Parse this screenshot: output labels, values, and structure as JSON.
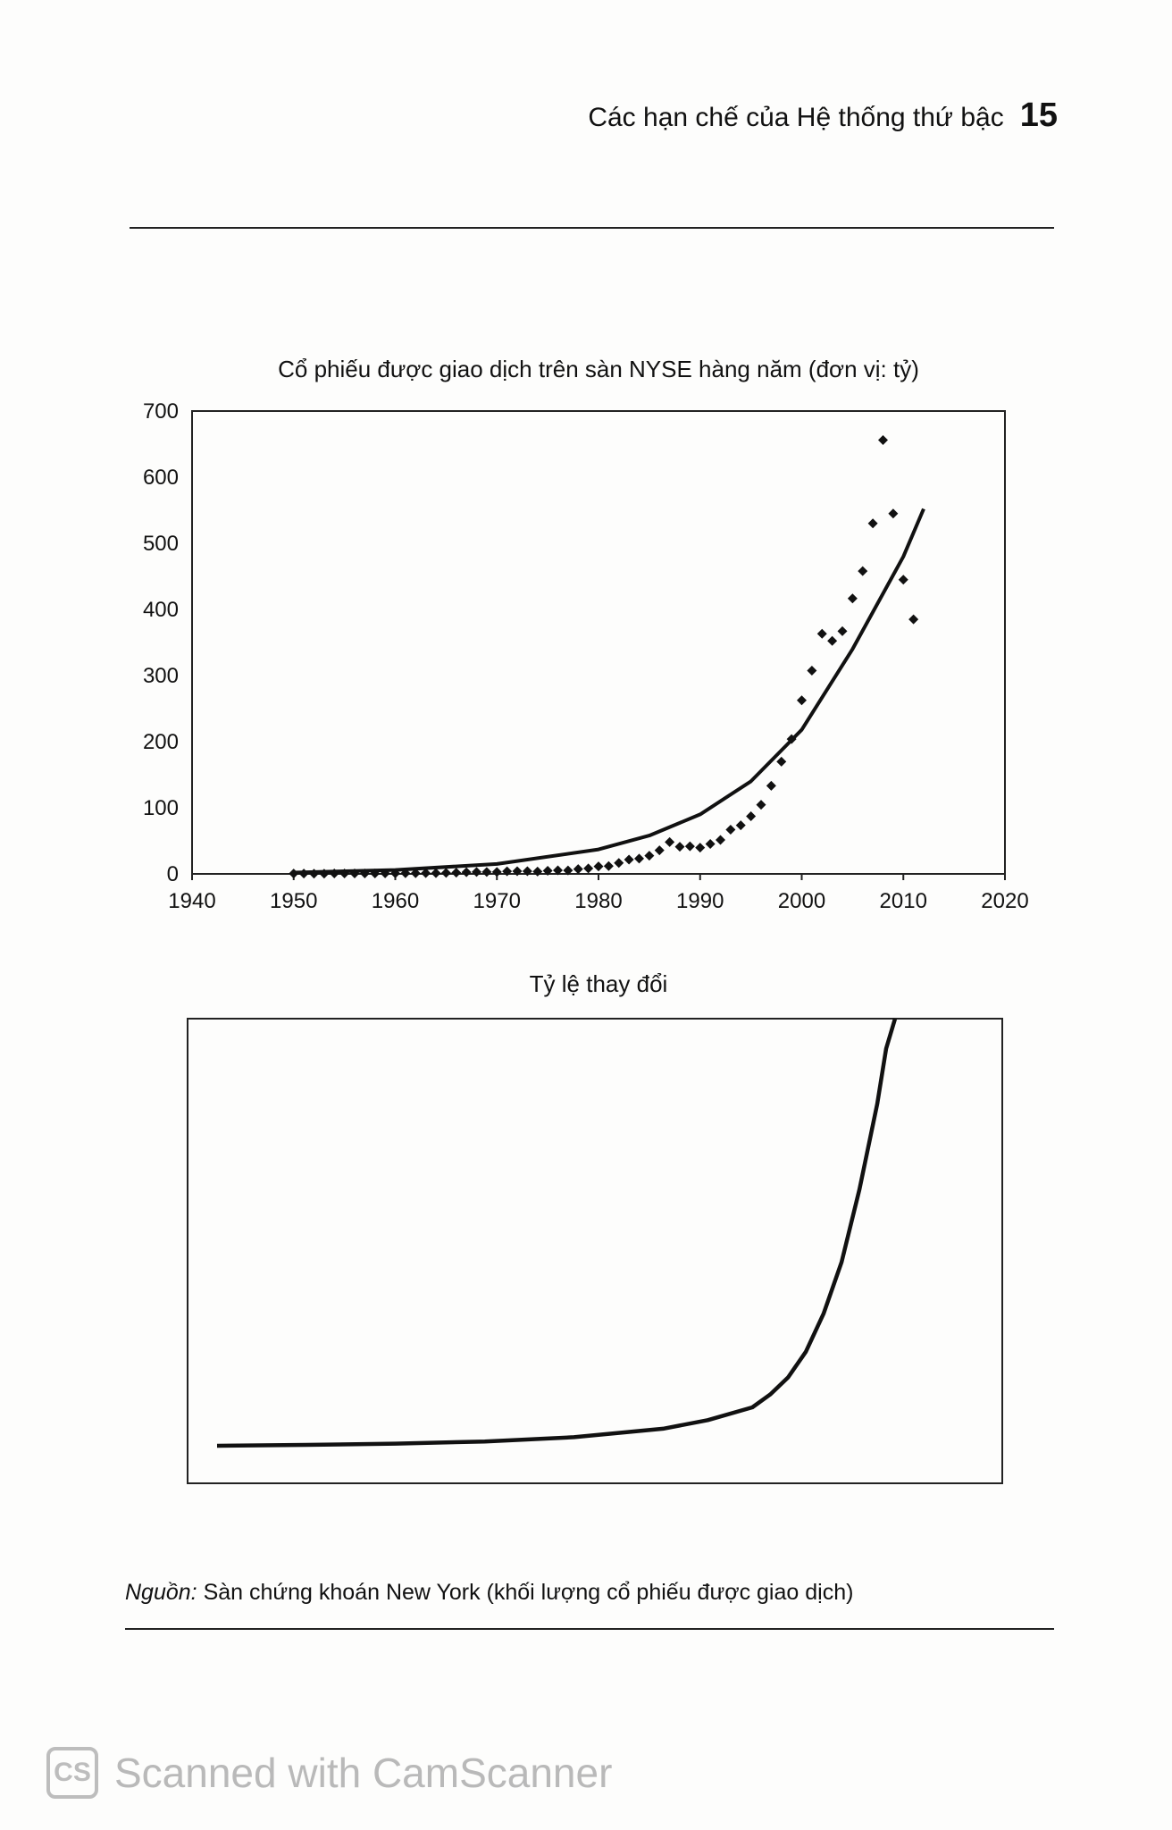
{
  "header": {
    "title": "Các hạn chế của Hệ thống thứ bậc",
    "page_number": "15"
  },
  "chart_data": [
    {
      "type": "scatter",
      "title": "Cổ phiếu được giao dịch trên sàn NYSE hàng năm (đơn vị: tỷ)",
      "xlabel": "",
      "ylabel": "",
      "xlim": [
        1940,
        2020
      ],
      "ylim": [
        0,
        700
      ],
      "x_ticks": [
        "1940",
        "1950",
        "1960",
        "1970",
        "1980",
        "1990",
        "2000",
        "2010",
        "2020"
      ],
      "y_ticks": [
        "0",
        "100",
        "200",
        "300",
        "400",
        "500",
        "600",
        "700"
      ],
      "grid": false,
      "series": [
        {
          "points": [
            [
              1950,
              0.5
            ],
            [
              1951,
              0.5
            ],
            [
              1952,
              0.3
            ],
            [
              1953,
              0.4
            ],
            [
              1954,
              0.6
            ],
            [
              1955,
              0.6
            ],
            [
              1956,
              0.6
            ],
            [
              1957,
              0.6
            ],
            [
              1958,
              0.7
            ],
            [
              1959,
              0.8
            ],
            [
              1960,
              0.8
            ],
            [
              1961,
              1.0
            ],
            [
              1962,
              1.0
            ],
            [
              1963,
              1.1
            ],
            [
              1964,
              1.2
            ],
            [
              1965,
              1.6
            ],
            [
              1966,
              1.9
            ],
            [
              1967,
              2.5
            ],
            [
              1968,
              2.9
            ],
            [
              1969,
              2.9
            ],
            [
              1970,
              2.9
            ],
            [
              1971,
              3.9
            ],
            [
              1972,
              4.1
            ],
            [
              1973,
              4.1
            ],
            [
              1974,
              3.5
            ],
            [
              1975,
              4.7
            ],
            [
              1976,
              5.4
            ],
            [
              1977,
              5.3
            ],
            [
              1978,
              7.2
            ],
            [
              1979,
              8.2
            ],
            [
              1980,
              11.4
            ],
            [
              1981,
              11.9
            ],
            [
              1982,
              16.5
            ],
            [
              1983,
              21.6
            ],
            [
              1984,
              23.1
            ],
            [
              1985,
              27.5
            ],
            [
              1986,
              35.7
            ],
            [
              1987,
              48.1
            ],
            [
              1988,
              41.1
            ],
            [
              1989,
              41.7
            ],
            [
              1990,
              39.7
            ],
            [
              1991,
              45.3
            ],
            [
              1992,
              51.4
            ],
            [
              1993,
              66.9
            ],
            [
              1994,
              73.4
            ],
            [
              1995,
              87.2
            ],
            [
              1996,
              104.6
            ],
            [
              1997,
              133.3
            ],
            [
              1998,
              169.7
            ],
            [
              1999,
              203.9
            ],
            [
              2000,
              262.5
            ],
            [
              2001,
              307.5
            ],
            [
              2002,
              363.1
            ],
            [
              2003,
              352.4
            ],
            [
              2004,
              367.1
            ],
            [
              2005,
              416.6
            ],
            [
              2006,
              457.9
            ],
            [
              2007,
              530.0
            ],
            [
              2008,
              656.0
            ],
            [
              2009,
              545.0
            ],
            [
              2010,
              445.0
            ],
            [
              2011,
              385.0
            ]
          ]
        },
        {
          "type": "line",
          "points": [
            [
              1950,
              2
            ],
            [
              1960,
              6
            ],
            [
              1970,
              15
            ],
            [
              1980,
              37
            ],
            [
              1985,
              58
            ],
            [
              1990,
              90
            ],
            [
              1995,
              140
            ],
            [
              2000,
              218
            ],
            [
              2005,
              340
            ],
            [
              2010,
              480
            ],
            [
              2012,
              552
            ]
          ]
        }
      ]
    },
    {
      "type": "line",
      "title": "Tỷ lệ thay đổi",
      "xlabel": "",
      "ylabel": "",
      "series": [
        {
          "points": [
            [
              0,
              0
            ],
            [
              10,
              0.002
            ],
            [
              20,
              0.005
            ],
            [
              30,
              0.01
            ],
            [
              40,
              0.02
            ],
            [
              50,
              0.04
            ],
            [
              55,
              0.06
            ],
            [
              60,
              0.09
            ],
            [
              62,
              0.12
            ],
            [
              64,
              0.16
            ],
            [
              66,
              0.22
            ],
            [
              68,
              0.31
            ],
            [
              70,
              0.43
            ],
            [
              72,
              0.6
            ],
            [
              74,
              0.8
            ],
            [
              75,
              0.93
            ],
            [
              76,
              1.0
            ]
          ]
        }
      ]
    }
  ],
  "source": {
    "label": "Nguồn:",
    "text": " Sàn chứng khoán New York (khối lượng cổ phiếu được giao dịch)"
  },
  "watermark": {
    "logo": "CS",
    "text": "Scanned with CamScanner"
  }
}
